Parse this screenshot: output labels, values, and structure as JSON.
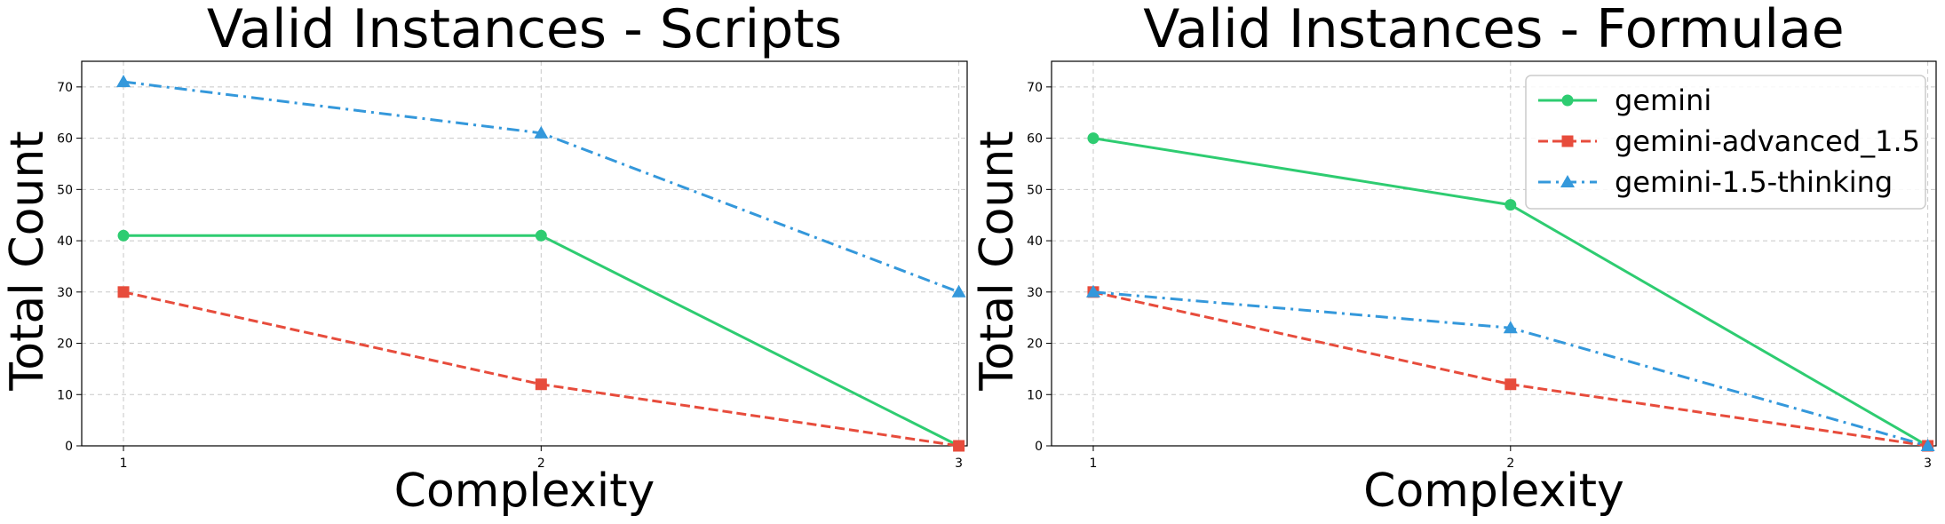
{
  "chart_data": [
    {
      "type": "line",
      "title": "Valid Instances - Scripts",
      "xlabel": "Complexity",
      "ylabel": "Total Count",
      "x": [
        1,
        2,
        3
      ],
      "xticks": [
        "1",
        "2",
        "3"
      ],
      "ylim": [
        0,
        75
      ],
      "yticks": [
        "0",
        "10",
        "20",
        "30",
        "40",
        "50",
        "60",
        "70"
      ],
      "grid": true,
      "legend": "none",
      "series": [
        {
          "name": "gemini",
          "values": [
            41,
            41,
            0
          ],
          "color": "#2ecc71",
          "dash": "solid",
          "marker": "circle"
        },
        {
          "name": "gemini-advanced_1.5",
          "values": [
            30,
            12,
            0
          ],
          "color": "#e74c3c",
          "dash": "dashed",
          "marker": "square"
        },
        {
          "name": "gemini-1.5-thinking",
          "values": [
            71,
            61,
            30
          ],
          "color": "#3498db",
          "dash": "dashdot",
          "marker": "triangle"
        }
      ]
    },
    {
      "type": "line",
      "title": "Valid Instances - Formulae",
      "xlabel": "Complexity",
      "ylabel": "Total Count",
      "x": [
        1,
        2,
        3
      ],
      "xticks": [
        "1",
        "2",
        "3"
      ],
      "ylim": [
        0,
        75
      ],
      "yticks": [
        "0",
        "10",
        "20",
        "30",
        "40",
        "50",
        "60",
        "70"
      ],
      "grid": true,
      "legend": "top-right",
      "series": [
        {
          "name": "gemini",
          "values": [
            60,
            47,
            0
          ],
          "color": "#2ecc71",
          "dash": "solid",
          "marker": "circle"
        },
        {
          "name": "gemini-advanced_1.5",
          "values": [
            30,
            12,
            0
          ],
          "color": "#e74c3c",
          "dash": "dashed",
          "marker": "square"
        },
        {
          "name": "gemini-1.5-thinking",
          "values": [
            30,
            23,
            0
          ],
          "color": "#3498db",
          "dash": "dashdot",
          "marker": "triangle"
        }
      ]
    }
  ]
}
